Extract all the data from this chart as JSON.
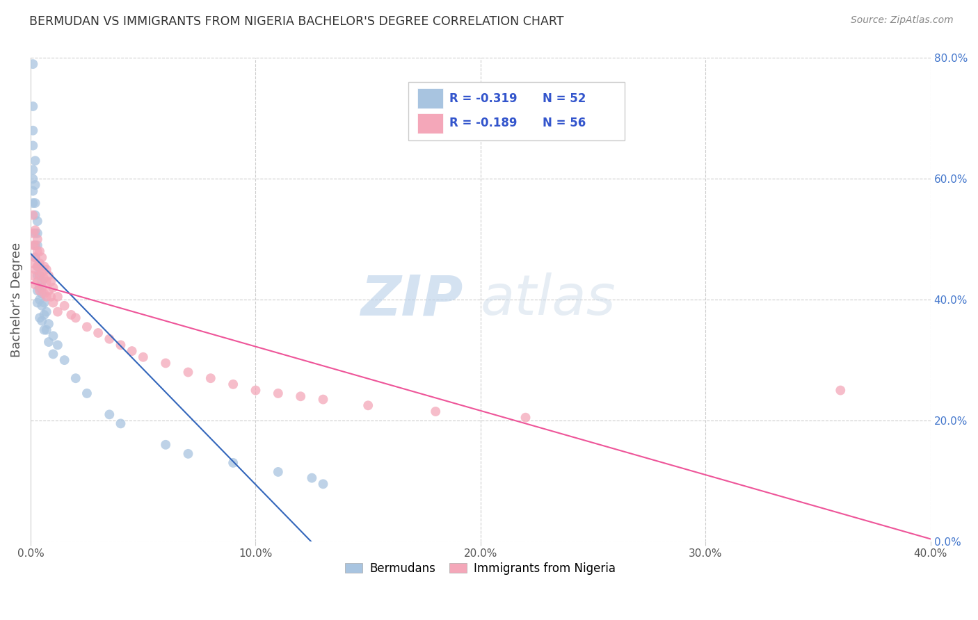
{
  "title": "BERMUDAN VS IMMIGRANTS FROM NIGERIA BACHELOR'S DEGREE CORRELATION CHART",
  "source": "Source: ZipAtlas.com",
  "ylabel": "Bachelor's Degree",
  "xlim": [
    0.0,
    0.4
  ],
  "ylim": [
    0.0,
    0.8
  ],
  "xticks": [
    0.0,
    0.1,
    0.2,
    0.3,
    0.4
  ],
  "xticklabels": [
    "0.0%",
    "10.0%",
    "20.0%",
    "30.0%",
    "40.0%"
  ],
  "yticks_right": [
    0.0,
    0.2,
    0.4,
    0.6,
    0.8
  ],
  "yticklabels_right": [
    "0.0%",
    "20.0%",
    "40.0%",
    "60.0%",
    "80.0%"
  ],
  "blue_R": -0.319,
  "blue_N": 52,
  "pink_R": -0.189,
  "pink_N": 56,
  "blue_color": "#a8c4e0",
  "pink_color": "#f4a7b9",
  "blue_line_color": "#3366bb",
  "pink_line_color": "#ee5599",
  "watermark_zip": "ZIP",
  "watermark_atlas": "atlas",
  "legend_label_blue": "Bermudans",
  "legend_label_pink": "Immigrants from Nigeria",
  "blue_x": [
    0.001,
    0.001,
    0.001,
    0.001,
    0.001,
    0.001,
    0.001,
    0.001,
    0.002,
    0.002,
    0.002,
    0.002,
    0.002,
    0.002,
    0.002,
    0.003,
    0.003,
    0.003,
    0.003,
    0.003,
    0.003,
    0.003,
    0.004,
    0.004,
    0.004,
    0.004,
    0.004,
    0.005,
    0.005,
    0.005,
    0.005,
    0.006,
    0.006,
    0.006,
    0.007,
    0.007,
    0.008,
    0.008,
    0.01,
    0.01,
    0.012,
    0.015,
    0.02,
    0.025,
    0.035,
    0.04,
    0.06,
    0.07,
    0.09,
    0.11,
    0.125,
    0.13
  ],
  "blue_y": [
    0.79,
    0.72,
    0.68,
    0.655,
    0.615,
    0.6,
    0.58,
    0.56,
    0.63,
    0.59,
    0.56,
    0.54,
    0.51,
    0.49,
    0.47,
    0.53,
    0.51,
    0.49,
    0.455,
    0.44,
    0.415,
    0.395,
    0.455,
    0.44,
    0.42,
    0.4,
    0.37,
    0.43,
    0.41,
    0.39,
    0.365,
    0.395,
    0.375,
    0.35,
    0.38,
    0.35,
    0.36,
    0.33,
    0.34,
    0.31,
    0.325,
    0.3,
    0.27,
    0.245,
    0.21,
    0.195,
    0.16,
    0.145,
    0.13,
    0.115,
    0.105,
    0.095
  ],
  "pink_x": [
    0.001,
    0.001,
    0.001,
    0.001,
    0.001,
    0.002,
    0.002,
    0.002,
    0.002,
    0.002,
    0.003,
    0.003,
    0.003,
    0.003,
    0.004,
    0.004,
    0.004,
    0.004,
    0.005,
    0.005,
    0.005,
    0.006,
    0.006,
    0.006,
    0.007,
    0.007,
    0.007,
    0.008,
    0.008,
    0.009,
    0.009,
    0.01,
    0.01,
    0.012,
    0.012,
    0.015,
    0.018,
    0.02,
    0.025,
    0.03,
    0.035,
    0.04,
    0.045,
    0.05,
    0.06,
    0.07,
    0.08,
    0.09,
    0.1,
    0.11,
    0.12,
    0.13,
    0.15,
    0.18,
    0.22,
    0.36
  ],
  "pink_y": [
    0.54,
    0.51,
    0.49,
    0.46,
    0.44,
    0.515,
    0.49,
    0.47,
    0.45,
    0.425,
    0.5,
    0.48,
    0.455,
    0.43,
    0.48,
    0.46,
    0.44,
    0.415,
    0.47,
    0.445,
    0.42,
    0.455,
    0.435,
    0.41,
    0.45,
    0.43,
    0.405,
    0.44,
    0.415,
    0.43,
    0.405,
    0.42,
    0.395,
    0.405,
    0.38,
    0.39,
    0.375,
    0.37,
    0.355,
    0.345,
    0.335,
    0.325,
    0.315,
    0.305,
    0.295,
    0.28,
    0.27,
    0.26,
    0.25,
    0.245,
    0.24,
    0.235,
    0.225,
    0.215,
    0.205,
    0.25
  ]
}
